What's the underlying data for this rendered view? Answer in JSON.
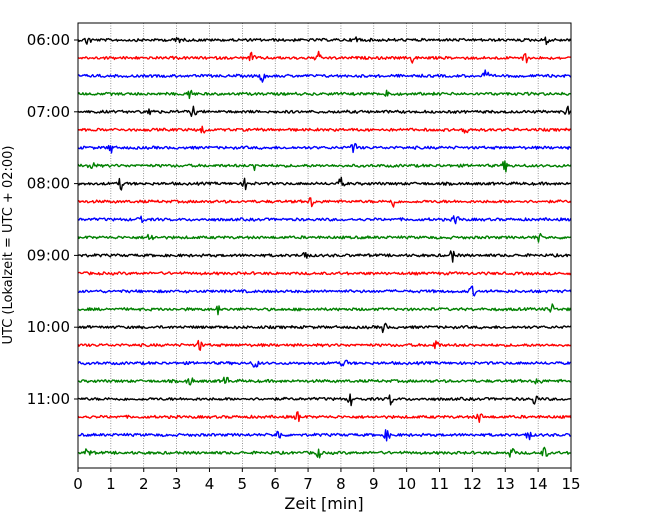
{
  "chart_data": {
    "type": "line",
    "title": "",
    "xlabel": "Zeit  [min]",
    "ylabel": "UTC (Lokalzeit = UTC + 02:00)",
    "xlim": [
      0,
      15
    ],
    "x_ticks": [
      0,
      1,
      2,
      3,
      4,
      5,
      6,
      7,
      8,
      9,
      10,
      11,
      12,
      13,
      14,
      15
    ],
    "y_tick_labels": [
      "06:00",
      "07:00",
      "08:00",
      "09:00",
      "10:00",
      "11:00"
    ],
    "grid": "vertical dotted",
    "trace_colors": [
      "#000000",
      "#ff0000",
      "#0000ff",
      "#008000"
    ],
    "series": [
      {
        "start": "06:00",
        "color": "#000000",
        "events": [
          0.3,
          3.0,
          8.5,
          14.3
        ]
      },
      {
        "start": "06:15",
        "color": "#ff0000",
        "events": [
          5.3,
          7.3,
          10.2,
          13.6
        ]
      },
      {
        "start": "06:30",
        "color": "#0000ff",
        "events": [
          5.6,
          12.4
        ]
      },
      {
        "start": "06:45",
        "color": "#008000",
        "events": [
          3.4,
          9.4
        ]
      },
      {
        "start": "07:00",
        "color": "#000000",
        "events": [
          2.2,
          3.5,
          14.9
        ]
      },
      {
        "start": "07:15",
        "color": "#ff0000",
        "events": [
          3.8,
          11.8
        ]
      },
      {
        "start": "07:30",
        "color": "#0000ff",
        "events": [
          1.0,
          8.4
        ]
      },
      {
        "start": "07:45",
        "color": "#008000",
        "events": [
          0.4,
          5.4,
          13.0
        ]
      },
      {
        "start": "08:00",
        "color": "#000000",
        "events": [
          1.3,
          5.1,
          8.0
        ]
      },
      {
        "start": "08:15",
        "color": "#ff0000",
        "events": [
          7.1,
          9.6
        ]
      },
      {
        "start": "08:30",
        "color": "#0000ff",
        "events": [
          1.9,
          11.5
        ]
      },
      {
        "start": "08:45",
        "color": "#008000",
        "events": [
          2.2,
          14.0
        ]
      },
      {
        "start": "09:00",
        "color": "#000000",
        "events": [
          6.9,
          11.4
        ]
      },
      {
        "start": "09:15",
        "color": "#ff0000",
        "events": []
      },
      {
        "start": "09:30",
        "color": "#0000ff",
        "events": [
          12.0
        ]
      },
      {
        "start": "09:45",
        "color": "#008000",
        "events": [
          4.3,
          14.4
        ]
      },
      {
        "start": "10:00",
        "color": "#000000",
        "events": [
          9.3
        ]
      },
      {
        "start": "10:15",
        "color": "#ff0000",
        "events": [
          3.7,
          10.9
        ]
      },
      {
        "start": "10:30",
        "color": "#0000ff",
        "events": [
          5.4,
          8.1
        ]
      },
      {
        "start": "10:45",
        "color": "#008000",
        "events": [
          3.4,
          4.5,
          14.0
        ]
      },
      {
        "start": "11:00",
        "color": "#000000",
        "events": [
          8.3,
          9.5,
          13.9
        ]
      },
      {
        "start": "11:15",
        "color": "#ff0000",
        "events": [
          6.7,
          12.2
        ]
      },
      {
        "start": "11:30",
        "color": "#0000ff",
        "events": [
          6.1,
          9.4,
          13.7
        ]
      },
      {
        "start": "11:45",
        "color": "#008000",
        "events": [
          0.3,
          7.3,
          13.2,
          14.2
        ]
      }
    ]
  }
}
